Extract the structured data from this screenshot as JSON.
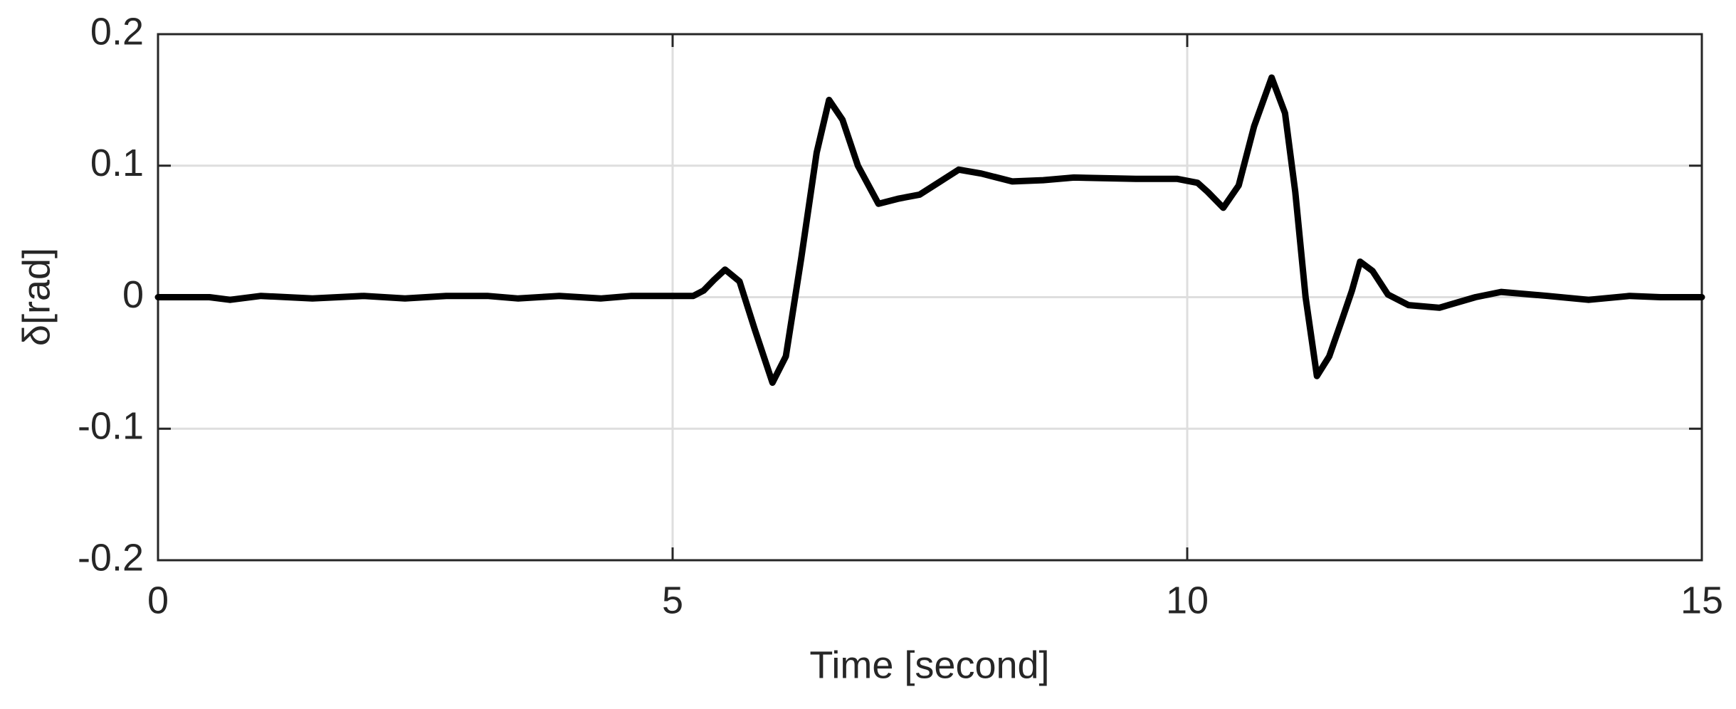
{
  "chart_data": {
    "type": "line",
    "xlabel": "Time [second]",
    "ylabel": "δ[rad]",
    "xlim": [
      0,
      15
    ],
    "ylim": [
      -0.2,
      0.2
    ],
    "xticks": [
      0,
      5,
      10,
      15
    ],
    "yticks": [
      -0.2,
      -0.1,
      0,
      0.1,
      0.2
    ],
    "grid": true,
    "x": [
      0,
      0.5,
      0.7,
      1.0,
      1.5,
      2.0,
      2.4,
      2.8,
      3.2,
      3.5,
      3.9,
      4.3,
      4.6,
      5.0,
      5.2,
      5.3,
      5.4,
      5.51,
      5.65,
      5.8,
      5.97,
      6.1,
      6.25,
      6.4,
      6.52,
      6.65,
      6.8,
      7.0,
      7.2,
      7.4,
      7.6,
      7.78,
      8.0,
      8.3,
      8.6,
      8.9,
      9.5,
      9.9,
      10.1,
      10.2,
      10.35,
      10.5,
      10.65,
      10.82,
      10.95,
      11.05,
      11.15,
      11.26,
      11.38,
      11.5,
      11.6,
      11.68,
      11.8,
      11.95,
      12.15,
      12.45,
      12.8,
      13.05,
      13.5,
      13.9,
      14.3,
      14.6,
      15
    ],
    "series": [
      {
        "name": "δ",
        "color": "#000000",
        "values": [
          0,
          0,
          -0.002,
          0.001,
          -0.001,
          0.001,
          -0.001,
          0.001,
          0.001,
          -0.001,
          0.001,
          -0.001,
          0.001,
          0.001,
          0.001,
          0.005,
          0.013,
          0.021,
          0.012,
          -0.025,
          -0.065,
          -0.045,
          0.03,
          0.11,
          0.15,
          0.135,
          0.1,
          0.071,
          0.075,
          0.078,
          0.088,
          0.097,
          0.094,
          0.088,
          0.089,
          0.091,
          0.09,
          0.09,
          0.087,
          0.08,
          0.068,
          0.085,
          0.13,
          0.167,
          0.14,
          0.08,
          0.0,
          -0.06,
          -0.045,
          -0.018,
          0.005,
          0.027,
          0.02,
          0.002,
          -0.006,
          -0.008,
          0.0,
          0.004,
          0.001,
          -0.002,
          0.001,
          0.0,
          0
        ]
      }
    ]
  }
}
